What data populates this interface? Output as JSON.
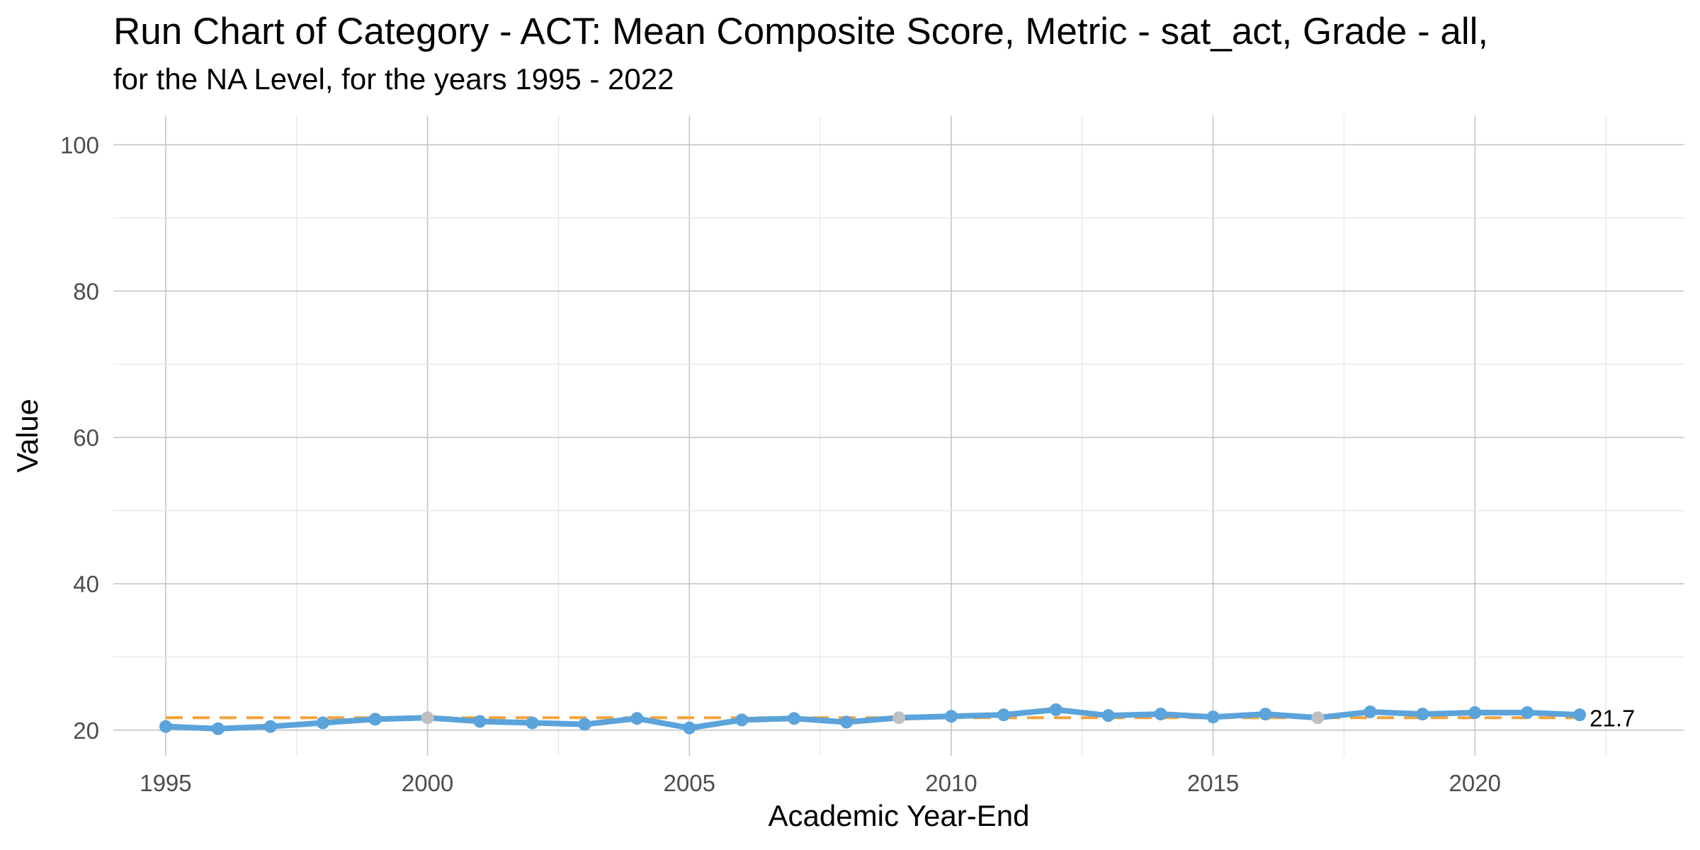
{
  "chart_data": {
    "type": "line",
    "title": "Run Chart of Category - ACT: Mean Composite Score, Metric - sat_act, Grade - all,",
    "subtitle": "for the NA Level, for the years 1995 - 2022",
    "xlabel": "Academic Year-End",
    "ylabel": "Value",
    "xlim": [
      1994,
      2024
    ],
    "ylim": [
      16.5,
      104
    ],
    "x_ticks": [
      1995,
      2000,
      2005,
      2010,
      2015,
      2020
    ],
    "y_ticks": [
      20,
      40,
      60,
      80,
      100
    ],
    "grid": true,
    "x": [
      1995,
      1996,
      1997,
      1998,
      1999,
      2000,
      2001,
      2002,
      2003,
      2004,
      2005,
      2006,
      2007,
      2008,
      2009,
      2010,
      2011,
      2012,
      2013,
      2014,
      2015,
      2016,
      2017,
      2018,
      2019,
      2020,
      2021,
      2022
    ],
    "series": [
      {
        "values": [
          20.5,
          20.2,
          20.5,
          21.0,
          21.5,
          21.7,
          21.2,
          21.0,
          20.8,
          21.6,
          20.3,
          21.4,
          21.6,
          21.1,
          21.7,
          21.9,
          22.1,
          22.8,
          22.0,
          22.2,
          21.8,
          22.2,
          21.7,
          22.5,
          22.2,
          22.4,
          22.4,
          22.1
        ],
        "color": "#5ba3db"
      }
    ],
    "highlighted_points": [
      2000,
      2009,
      2017
    ],
    "highlight_color": "#c0c0c0",
    "median": 21.7,
    "median_color": "#f5a23a",
    "end_label": "21.7"
  }
}
